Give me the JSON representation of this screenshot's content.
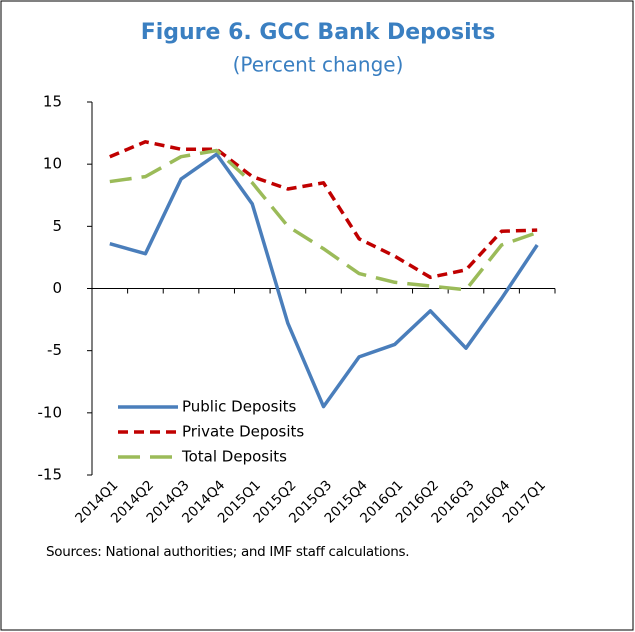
{
  "chart_data": {
    "type": "line",
    "title": "Figure 6. GCC Bank Deposits",
    "subtitle": "(Percent change)",
    "source": "Sources: National authorities; and IMF staff calculations.",
    "categories": [
      "2014Q1",
      "2014Q2",
      "2014Q3",
      "2014Q4",
      "2015Q1",
      "2015Q2",
      "2015Q3",
      "2015Q4",
      "2016Q1",
      "2016Q2",
      "2016Q3",
      "2016Q4",
      "2017Q1"
    ],
    "series": [
      {
        "name": "Public Deposits",
        "color": "#4a7ebb",
        "dash": "solid",
        "values": [
          3.6,
          2.8,
          8.8,
          10.8,
          6.8,
          -2.8,
          -9.5,
          -5.5,
          -4.5,
          -1.8,
          -4.8,
          -0.8,
          3.5
        ]
      },
      {
        "name": "Private Deposits",
        "color": "#c00000",
        "dash": "dashed",
        "values": [
          10.6,
          11.8,
          11.2,
          11.2,
          9.0,
          8.0,
          8.5,
          4.0,
          2.6,
          0.9,
          1.5,
          4.6,
          4.7
        ]
      },
      {
        "name": "Total Deposits",
        "color": "#9bbb59",
        "dash": "longdash",
        "values": [
          8.6,
          9.0,
          10.6,
          11.1,
          8.5,
          5.0,
          3.2,
          1.2,
          0.5,
          0.2,
          -0.1,
          3.5,
          4.5
        ]
      }
    ],
    "ylim": [
      -15,
      15
    ],
    "yticks": [
      -15,
      -10,
      -5,
      0,
      5,
      10,
      15
    ],
    "grid": false,
    "legend": "lower left"
  }
}
